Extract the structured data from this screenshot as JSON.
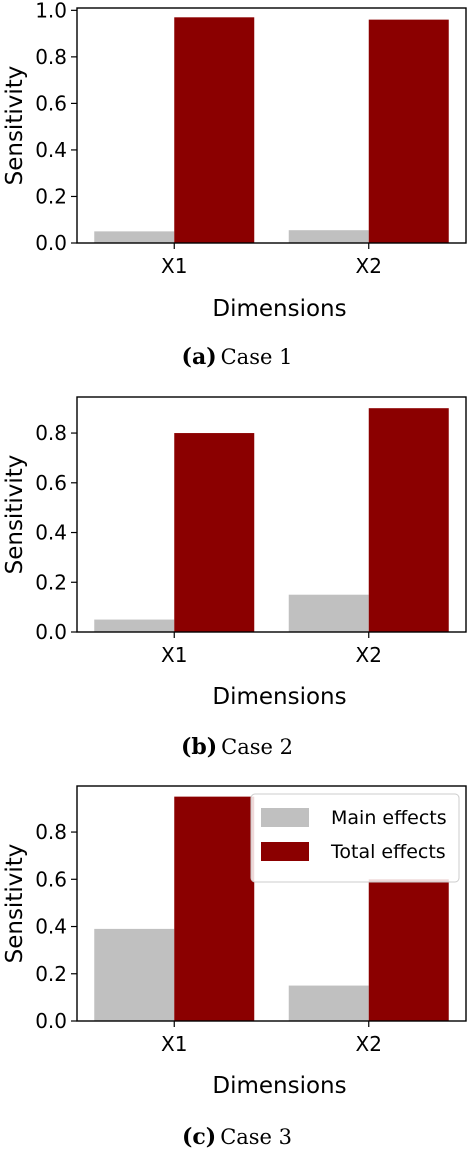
{
  "colors": {
    "main": "#c0c0c0",
    "total": "#8b0000"
  },
  "chart_data": [
    {
      "type": "bar",
      "caption_label": "(a)",
      "caption_text": "Case 1",
      "categories": [
        "X1",
        "X2"
      ],
      "series": [
        {
          "name": "Main effects",
          "values": [
            0.05,
            0.055
          ]
        },
        {
          "name": "Total effects",
          "values": [
            0.97,
            0.96
          ]
        }
      ],
      "xlabel": "Dimensions",
      "ylabel": "Sensitivity",
      "yticks": [
        0.0,
        0.2,
        0.4,
        0.6,
        0.8,
        1.0
      ],
      "ylim": [
        0,
        1.01
      ],
      "legend": false
    },
    {
      "type": "bar",
      "caption_label": "(b)",
      "caption_text": "Case 2",
      "categories": [
        "X1",
        "X2"
      ],
      "series": [
        {
          "name": "Main effects",
          "values": [
            0.05,
            0.15
          ]
        },
        {
          "name": "Total effects",
          "values": [
            0.8,
            0.9
          ]
        }
      ],
      "xlabel": "Dimensions",
      "ylabel": "Sensitivity",
      "yticks": [
        0.0,
        0.2,
        0.4,
        0.6,
        0.8
      ],
      "ylim": [
        0,
        0.945
      ],
      "legend": false
    },
    {
      "type": "bar",
      "caption_label": "(c)",
      "caption_text": "Case 3",
      "categories": [
        "X1",
        "X2"
      ],
      "series": [
        {
          "name": "Main effects",
          "values": [
            0.39,
            0.15
          ]
        },
        {
          "name": "Total effects",
          "values": [
            0.95,
            0.6
          ]
        }
      ],
      "xlabel": "Dimensions",
      "ylabel": "Sensitivity",
      "yticks": [
        0.0,
        0.2,
        0.4,
        0.6,
        0.8
      ],
      "ylim": [
        0,
        0.995
      ],
      "legend": true,
      "legend_position": "top-right"
    }
  ]
}
